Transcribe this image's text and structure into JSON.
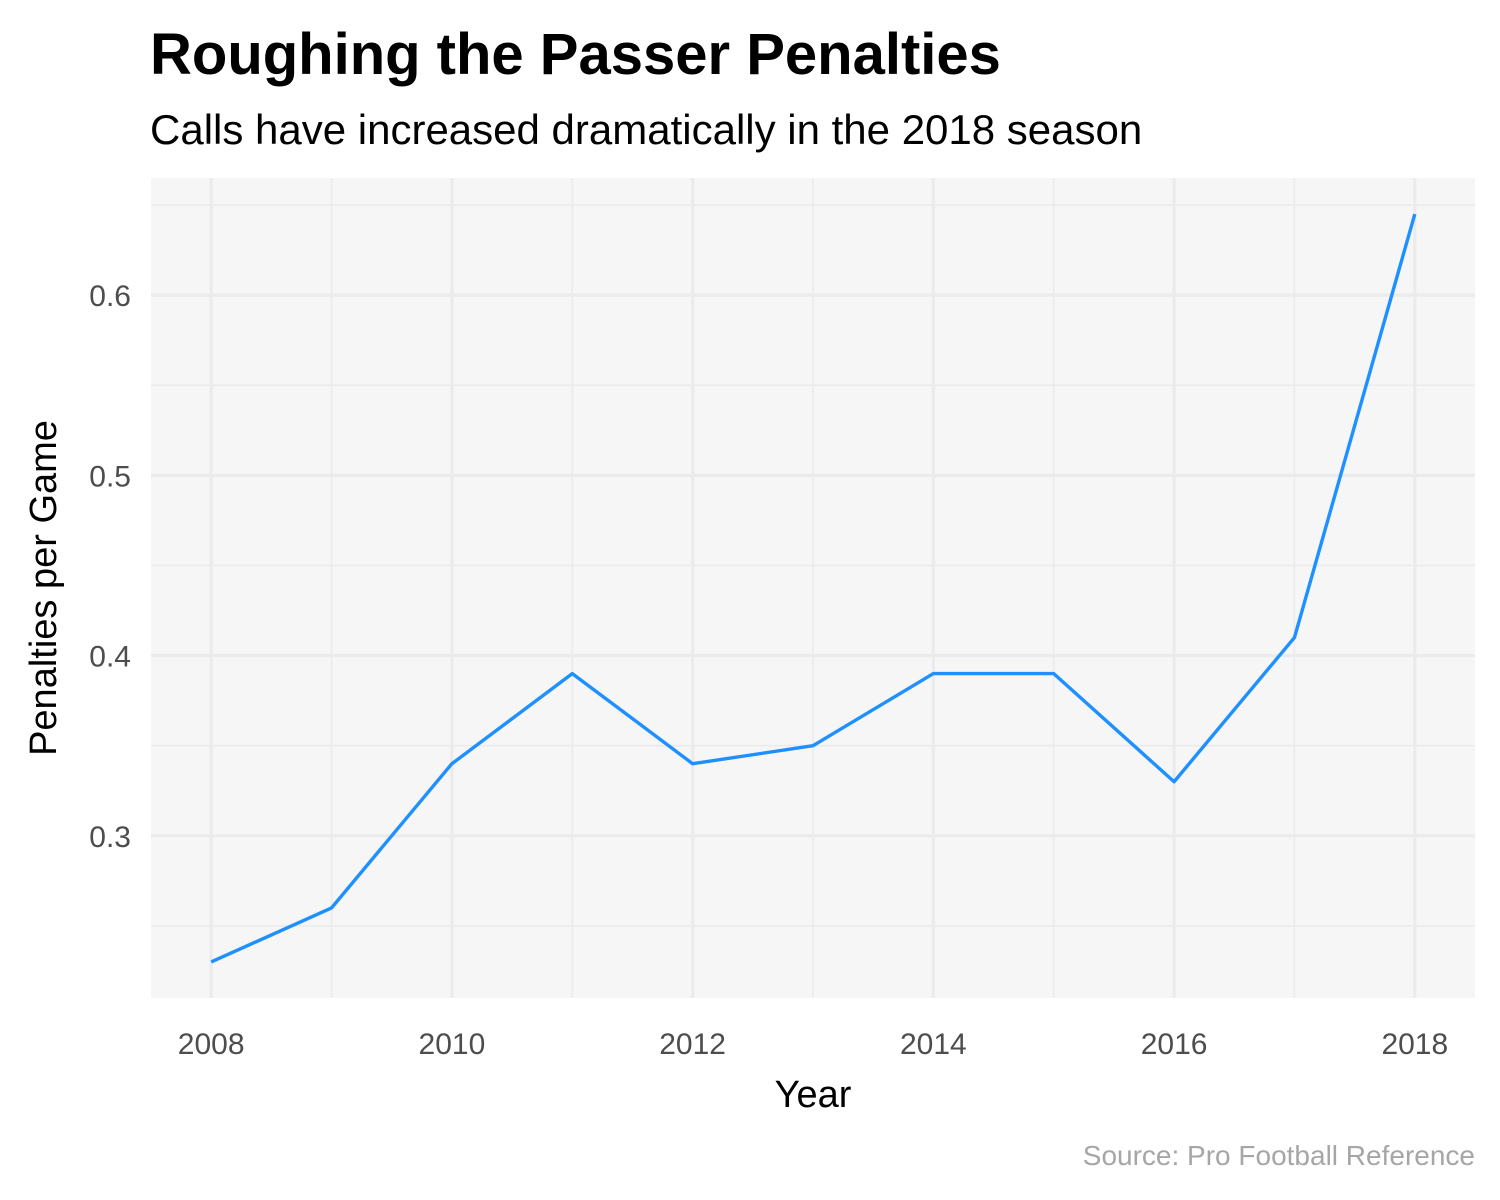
{
  "chart_data": {
    "type": "line",
    "title": "Roughing the Passer Penalties",
    "subtitle": "Calls have increased dramatically in the 2018 season",
    "xlabel": "Year",
    "ylabel": "Penalties per Game",
    "caption": "Source: Pro Football Reference",
    "x": [
      2008,
      2009,
      2010,
      2011,
      2012,
      2013,
      2014,
      2015,
      2016,
      2017,
      2018
    ],
    "series": [
      {
        "values": [
          0.23,
          0.26,
          0.34,
          0.39,
          0.34,
          0.35,
          0.39,
          0.39,
          0.33,
          0.41,
          0.645
        ],
        "color": "#1e90ff"
      }
    ],
    "xlim": [
      2007.5,
      2018.5
    ],
    "ylim": [
      0.21,
      0.665
    ],
    "x_ticks": [
      2008,
      2010,
      2012,
      2014,
      2016,
      2018
    ],
    "y_ticks": [
      0.3,
      0.4,
      0.5,
      0.6
    ],
    "y_tick_labels": [
      "0.3",
      "0.4",
      "0.5",
      "0.6"
    ],
    "grid": true,
    "panel_background": "#f6f6f6",
    "grid_color": "#ebebeb"
  }
}
